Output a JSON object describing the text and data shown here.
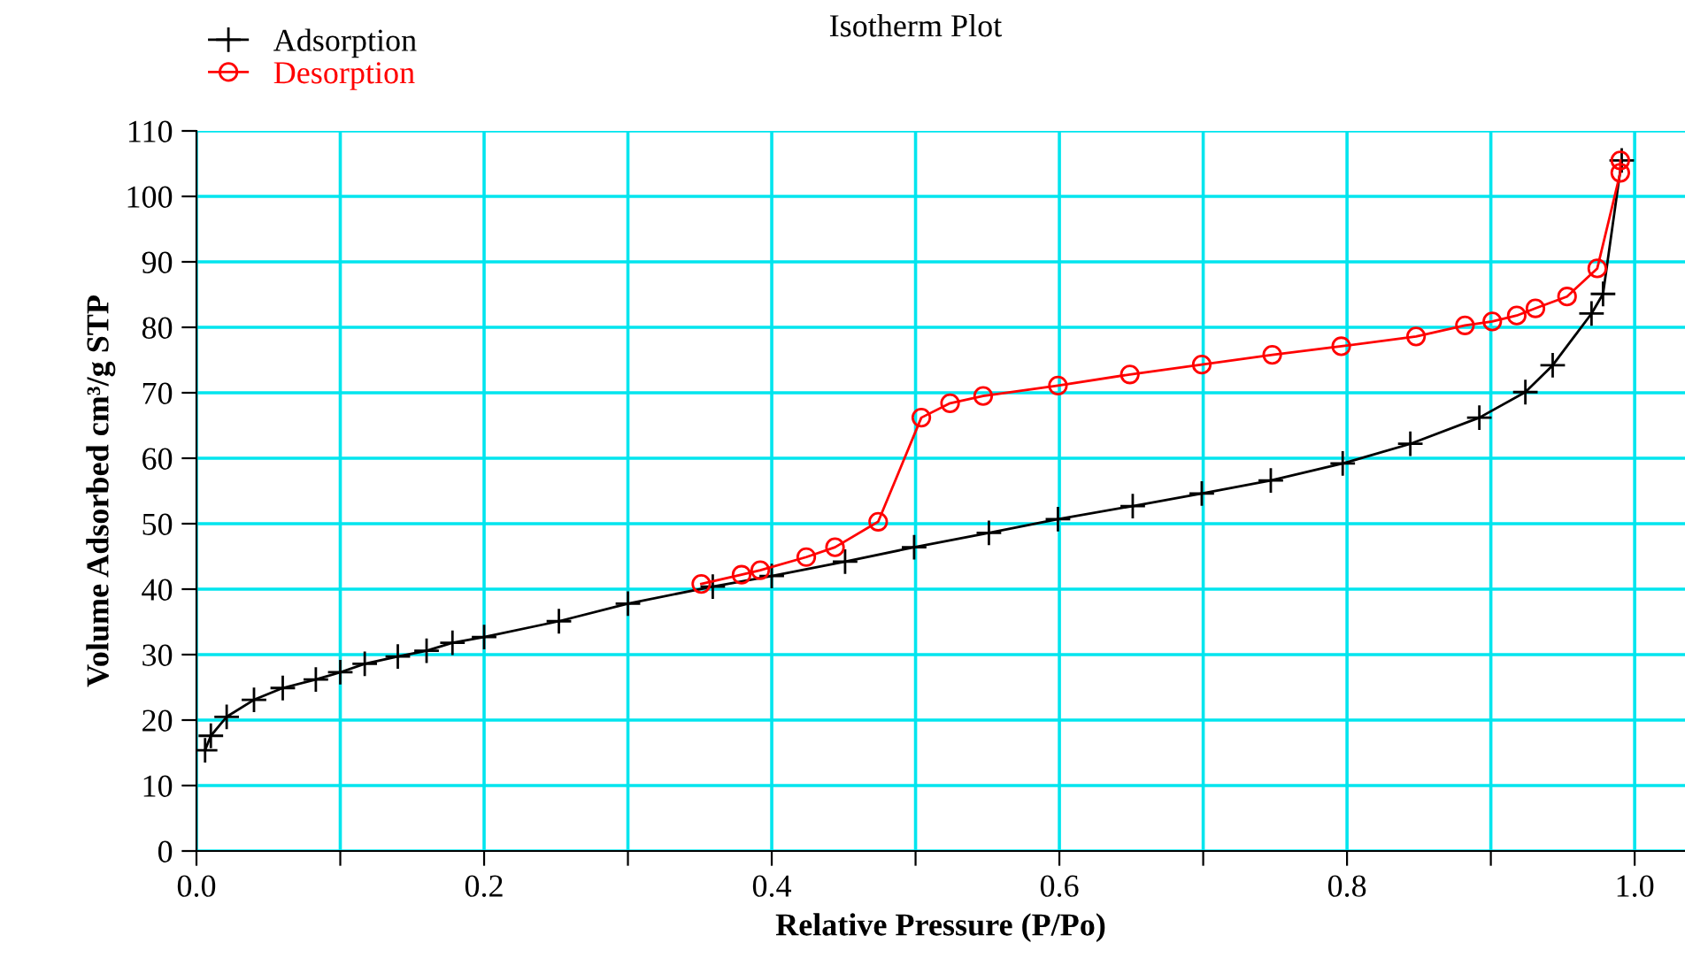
{
  "chart_data": {
    "type": "line",
    "title": "Isotherm Plot",
    "xlabel": "Relative Pressure (P/Po)",
    "ylabel": "Volume Adsorbed cm³/g STP",
    "xlim": [
      0,
      1.035
    ],
    "ylim": [
      0,
      110
    ],
    "xticks": [
      {
        "value": 0,
        "label": "0.0"
      },
      {
        "value": 0.1,
        "label": null
      },
      0.2,
      {
        "value": 0.3,
        "label": null
      },
      0.4,
      {
        "value": 0.5,
        "label": null
      },
      0.6,
      {
        "value": 0.7,
        "label": null
      },
      0.8,
      {
        "value": 0.9,
        "label": null
      },
      {
        "value": 1.0,
        "label": "1.0"
      }
    ],
    "yticks": [
      0,
      10,
      20,
      30,
      40,
      50,
      60,
      70,
      80,
      90,
      100,
      110
    ],
    "grid": true,
    "legend": "top left",
    "line_style": "solid",
    "series": [
      {
        "name": "Adsorption",
        "color": "#000000",
        "marker": "cross",
        "x": [
          0.006,
          0.01,
          0.021,
          0.04,
          0.06,
          0.083,
          0.1,
          0.117,
          0.14,
          0.16,
          0.178,
          0.2,
          0.252,
          0.3,
          0.359,
          0.4,
          0.451,
          0.499,
          0.551,
          0.599,
          0.651,
          0.699,
          0.747,
          0.797,
          0.844,
          0.892,
          0.924,
          0.943,
          0.97,
          0.978,
          0.991
        ],
        "values": [
          15.4,
          17.6,
          20.5,
          23.1,
          24.9,
          26.2,
          27.3,
          28.6,
          29.7,
          30.6,
          31.8,
          32.7,
          35.1,
          37.8,
          40.4,
          42.0,
          44.2,
          46.4,
          48.6,
          50.7,
          52.7,
          54.6,
          56.6,
          59.2,
          62.2,
          66.2,
          70.1,
          74.2,
          82.1,
          85.1,
          105.5
        ]
      },
      {
        "name": "Desorption",
        "color": "#ff0000",
        "marker": "circle",
        "x": [
          0.99,
          0.99,
          0.974,
          0.953,
          0.931,
          0.918,
          0.901,
          0.882,
          0.848,
          0.796,
          0.748,
          0.699,
          0.649,
          0.599,
          0.547,
          0.524,
          0.504,
          0.474,
          0.444,
          0.424,
          0.392,
          0.379,
          0.351
        ],
        "values": [
          105.5,
          103.6,
          89.0,
          84.7,
          82.9,
          81.8,
          80.9,
          80.3,
          78.6,
          77.1,
          75.8,
          74.3,
          72.8,
          71.1,
          69.5,
          68.4,
          66.2,
          50.3,
          46.4,
          44.9,
          42.9,
          42.2,
          40.8
        ]
      }
    ]
  }
}
